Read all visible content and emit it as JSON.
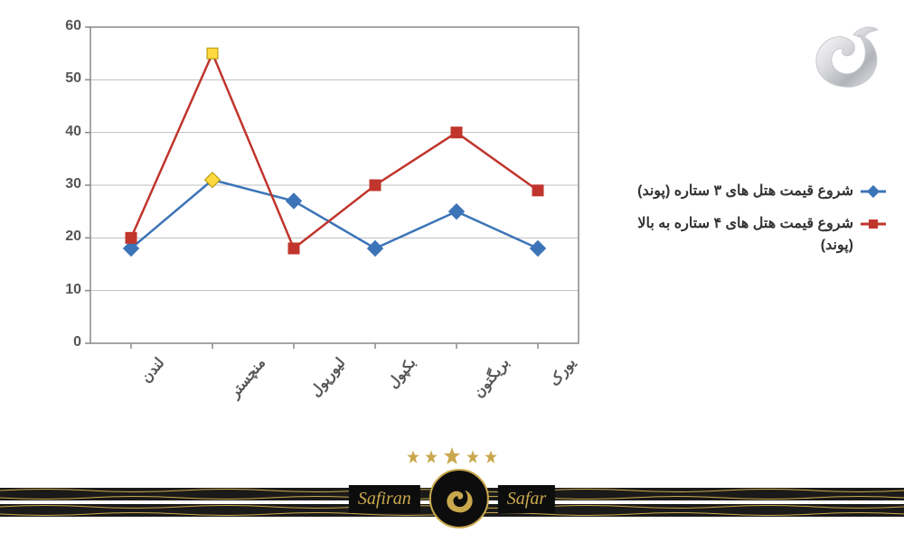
{
  "chart": {
    "type": "line",
    "ylim": [
      0,
      60
    ],
    "ytick_step": 10,
    "yticks": [
      0,
      10,
      20,
      30,
      40,
      50,
      60
    ],
    "categories": [
      "لندن",
      "منچستر",
      "لیورپول",
      "بکپول",
      "بریگتون",
      "یورک"
    ],
    "series": [
      {
        "key": "three_star",
        "values": [
          18,
          31,
          27,
          18,
          25,
          18
        ],
        "color": "#3c74b8",
        "marker": "diamond",
        "marker_color": "#3c74b8",
        "highlight_index": 1,
        "highlight_color": "#ffd940",
        "line_width": 2.5
      },
      {
        "key": "four_star",
        "values": [
          20,
          55,
          18,
          30,
          40,
          29
        ],
        "color": "#c0352c",
        "marker": "square",
        "marker_color": "#c0352c",
        "highlight_index": 1,
        "highlight_color": "#ffd940",
        "line_width": 2.5
      }
    ],
    "grid_color": "#bfbfbf",
    "axis_color": "#888888",
    "background_color": "#ffffff",
    "label_fontsize": 16
  },
  "legend": {
    "items": [
      {
        "label": "شروع قیمت هتل های ۳ ستاره (پوند)",
        "color": "#3c74b8",
        "marker": "diamond"
      },
      {
        "label": "شروع قیمت هتل های ۴ ستاره به بالا (پوند)",
        "color": "#c0352c",
        "marker": "square"
      }
    ]
  },
  "brand": {
    "word_left": "Safiran",
    "word_right": "Safar",
    "accent_color": "#c9a84d",
    "dark_color": "#1a1a1a"
  }
}
